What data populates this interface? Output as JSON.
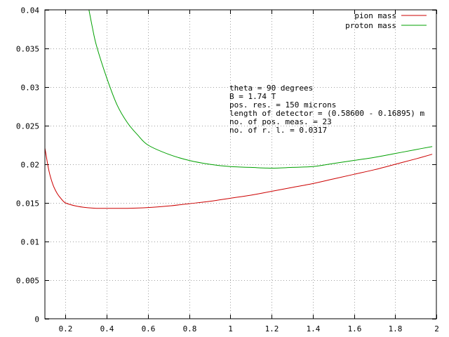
{
  "chart_data": {
    "type": "line",
    "title": "",
    "xlabel": "",
    "ylabel": "",
    "xlim": [
      0.1,
      2.0
    ],
    "ylim": [
      0,
      0.04
    ],
    "grid": true,
    "legend_position": "top-right",
    "x_ticks": [
      0.2,
      0.4,
      0.6,
      0.8,
      1,
      1.2,
      1.4,
      1.6,
      1.8,
      2
    ],
    "x_tick_labels": [
      "0.2",
      "0.4",
      "0.6",
      "0.8",
      "1",
      "1.2",
      "1.4",
      "1.6",
      "1.8",
      "2"
    ],
    "y_ticks": [
      0,
      0.005,
      0.01,
      0.015,
      0.02,
      0.025,
      0.03,
      0.035,
      0.04
    ],
    "y_tick_labels": [
      "0",
      "0.005",
      "0.01",
      "0.015",
      "0.02",
      "0.025",
      "0.03",
      "0.035",
      "0.04"
    ],
    "series": [
      {
        "name": "pion mass",
        "color": "#cc0000",
        "x": [
          0.1,
          0.12,
          0.14,
          0.16,
          0.18,
          0.2,
          0.25,
          0.3,
          0.35,
          0.4,
          0.5,
          0.6,
          0.7,
          0.8,
          0.9,
          1.0,
          1.1,
          1.2,
          1.3,
          1.4,
          1.5,
          1.6,
          1.7,
          1.8,
          1.9,
          1.98
        ],
        "y": [
          0.0221,
          0.0191,
          0.0173,
          0.0162,
          0.0155,
          0.015,
          0.0146,
          0.0144,
          0.0143,
          0.0143,
          0.0143,
          0.0144,
          0.0146,
          0.0149,
          0.0152,
          0.0156,
          0.016,
          0.0165,
          0.017,
          0.0175,
          0.0181,
          0.0187,
          0.0193,
          0.02,
          0.0207,
          0.0213
        ]
      },
      {
        "name": "proton mass",
        "color": "#00a000",
        "x": [
          0.31,
          0.33,
          0.35,
          0.4,
          0.45,
          0.5,
          0.55,
          0.6,
          0.7,
          0.8,
          0.9,
          1.0,
          1.1,
          1.2,
          1.3,
          1.4,
          1.5,
          1.6,
          1.7,
          1.8,
          1.9,
          1.98
        ],
        "y": [
          0.0405,
          0.0378,
          0.0354,
          0.0312,
          0.0277,
          0.0254,
          0.0238,
          0.0225,
          0.0213,
          0.0205,
          0.02,
          0.0197,
          0.0196,
          0.0195,
          0.0196,
          0.0197,
          0.0201,
          0.0205,
          0.0209,
          0.0214,
          0.0219,
          0.0223
        ]
      }
    ],
    "annotations": [
      "theta = 90 degrees",
      "B = 1.74 T",
      "pos. res. = 150 microns",
      "length of detector = (0.58600 - 0.16895) m",
      "no. of pos. meas. = 23",
      "no. of r. l. = 0.0317"
    ]
  }
}
